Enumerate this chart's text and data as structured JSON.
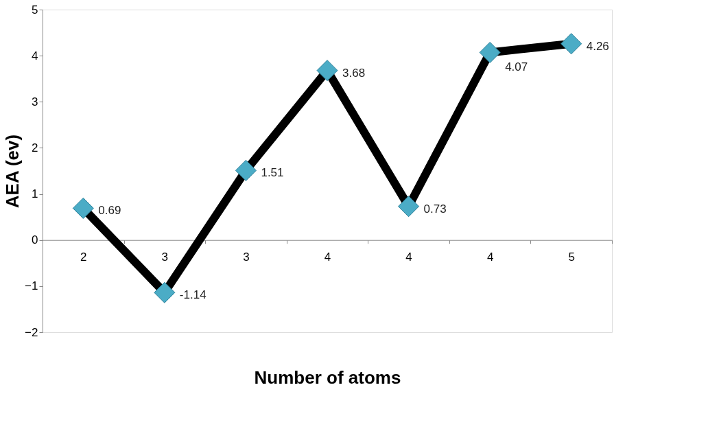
{
  "chart_data": {
    "type": "line",
    "xlabel": "Number of atoms",
    "ylabel": "AEA (ev)",
    "categories": [
      "2",
      "3",
      "3",
      "4",
      "4",
      "4",
      "5"
    ],
    "series": [
      {
        "color": "#000000",
        "colors": [
          "#4bacc6",
          "#4bacc6",
          "#4bacc6",
          "#4bacc6",
          "#4bacc6",
          "#4bacc6",
          "#4bacc6"
        ],
        "values": [
          0.69,
          -1.14,
          1.51,
          3.68,
          0.73,
          4.07,
          4.26
        ]
      }
    ],
    "ylim": [
      -2,
      5
    ],
    "yticks": [
      -2,
      -1,
      0,
      1,
      2,
      3,
      4,
      5
    ],
    "marker": "diamond",
    "line_style": "solid",
    "data_labels": true,
    "grid": false
  }
}
